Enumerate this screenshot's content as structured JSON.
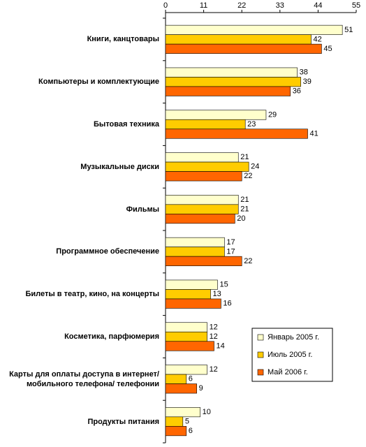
{
  "chart_data": {
    "type": "hbar",
    "categories": [
      "Книги, канцтовары",
      "Компьютеры и комплектующие",
      "Бытовая техника",
      "Музыкальные диски",
      "Фильмы",
      "Программное обеспечение",
      "Билеты в театр, кино, на концерты",
      "Косметика, парфюмерия",
      "Карты для оплаты доступа в интернет/ мобильного телефона/ телефонии",
      "Продукты питания"
    ],
    "series": [
      {
        "name": "Январь 2005 г.",
        "color": "#ffffcc",
        "values": [
          51,
          38,
          29,
          21,
          21,
          17,
          15,
          12,
          12,
          10
        ]
      },
      {
        "name": "Июль 2005 г.",
        "color": "#ffcc00",
        "values": [
          42,
          39,
          23,
          24,
          21,
          17,
          13,
          12,
          6,
          5
        ]
      },
      {
        "name": "Май 2006 г.",
        "color": "#ff6600",
        "values": [
          45,
          36,
          41,
          22,
          20,
          22,
          16,
          14,
          9,
          6
        ]
      }
    ],
    "xlim": [
      0,
      55
    ],
    "xticks": [
      0,
      11,
      22,
      33,
      44,
      55
    ],
    "legend": "lower-right"
  }
}
